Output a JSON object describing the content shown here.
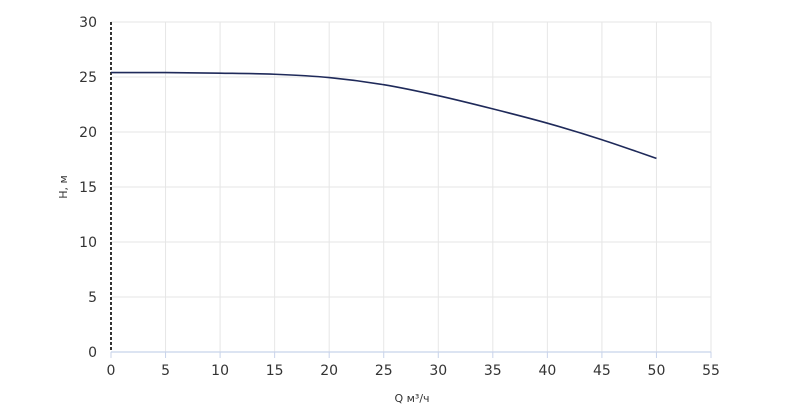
{
  "chart_data": {
    "type": "line",
    "title": "",
    "xlabel": "Q м³/ч",
    "ylabel": "H, м",
    "xlim": [
      0,
      55
    ],
    "ylim": [
      0,
      30
    ],
    "x_ticks": [
      0,
      5,
      10,
      15,
      20,
      25,
      30,
      35,
      40,
      45,
      50,
      55
    ],
    "y_ticks": [
      0,
      5,
      10,
      15,
      20,
      25,
      30
    ],
    "grid": true,
    "series": [
      {
        "color": "#1f2a5a",
        "x": [
          0,
          5,
          10,
          15,
          20,
          25,
          30,
          35,
          40,
          45,
          50
        ],
        "y": [
          25.4,
          25.4,
          25.35,
          25.25,
          24.95,
          24.3,
          23.3,
          22.1,
          20.8,
          19.3,
          17.6
        ]
      }
    ]
  }
}
